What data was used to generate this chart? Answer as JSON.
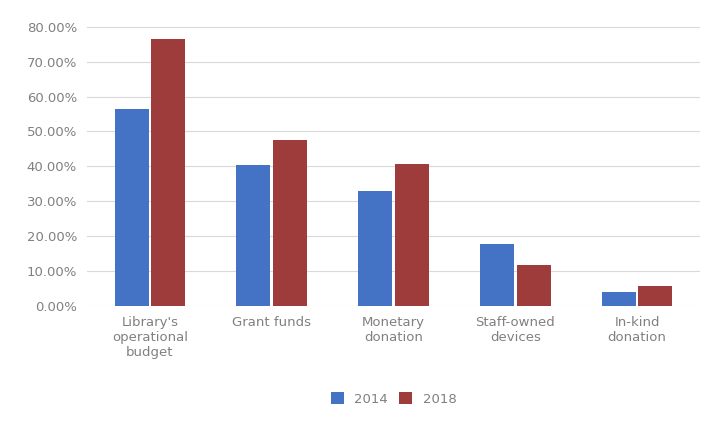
{
  "categories": [
    "Library's\noperational\nbudget",
    "Grant funds",
    "Monetary\ndonation",
    "Staff-owned\ndevices",
    "In-kind\ndonation"
  ],
  "values_2014": [
    0.565,
    0.405,
    0.328,
    0.178,
    0.04
  ],
  "values_2018": [
    0.765,
    0.475,
    0.408,
    0.118,
    0.057
  ],
  "color_2014": "#4472C4",
  "color_2018": "#9E3B3B",
  "legend_labels": [
    "2014",
    "2018"
  ],
  "ylim": [
    0,
    0.84
  ],
  "yticks": [
    0.0,
    0.1,
    0.2,
    0.3,
    0.4,
    0.5,
    0.6,
    0.7,
    0.8
  ],
  "bar_width": 0.28,
  "background_color": "#FFFFFF",
  "grid_color": "#D9D9D9",
  "tick_fontsize": 9.5,
  "legend_fontsize": 9.5,
  "tick_color": "#808080"
}
